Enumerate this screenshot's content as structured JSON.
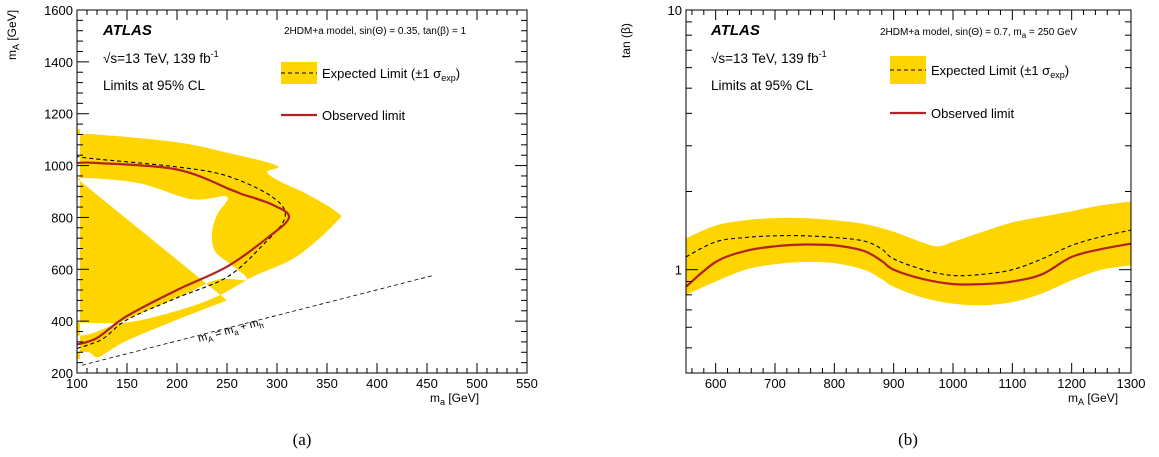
{
  "chart_data": [
    {
      "type": "line",
      "panel_label": "(a)",
      "xlabel": "m_a [GeV]",
      "ylabel": "m_A [GeV]",
      "xlim": [
        100,
        550
      ],
      "ylim": [
        200,
        1600
      ],
      "x_ticks": [
        "100",
        "150",
        "200",
        "250",
        "300",
        "350",
        "400",
        "450",
        "500",
        "550"
      ],
      "y_ticks": [
        "200",
        "400",
        "600",
        "800",
        "1000",
        "1200",
        "1400",
        "1600"
      ],
      "experiment": "ATLAS",
      "energy_lumi": "√s=13 TeV, 139 fb-1",
      "cl_text": "Limits at 95% CL",
      "model": "2HDM+a model, sin(Θ) = 0.35, tan(β) = 1",
      "annotation": "mA = ma + mh",
      "legend": [
        {
          "label": "Expected Limit (±1 σexp)"
        },
        {
          "label": "Observed limit"
        }
      ],
      "colors": {
        "band": "#ffd500",
        "observed": "#b22222",
        "expected": "#000000"
      },
      "series": [
        {
          "name": "Observed limit",
          "x": [
            100,
            120,
            150,
            200,
            250,
            290,
            312,
            295,
            265,
            255,
            200,
            120,
            100
          ],
          "y": [
            310,
            335,
            420,
            520,
            610,
            720,
            800,
            850,
            890,
            905,
            985,
            1010,
            1010
          ]
        },
        {
          "name": "Expected Limit (±1 σexp)",
          "x": [
            100,
            125,
            150,
            200,
            250,
            285,
            308,
            295,
            250,
            200,
            120,
            100
          ],
          "y": [
            295,
            330,
            405,
            490,
            570,
            690,
            800,
            880,
            960,
            995,
            1025,
            1035
          ]
        }
      ],
      "band": {
        "x": [
          100,
          150,
          200,
          240,
          275,
          320,
          360,
          360,
          330,
          305,
          290,
          300,
          250,
          200,
          120,
          100,
          100,
          120,
          165,
          215,
          250,
          240,
          235,
          238,
          255,
          270,
          240,
          200,
          120,
          100,
          100,
          112,
          120,
          130,
          150,
          200,
          250,
          100,
          100
        ],
        "y": [
          395,
          395,
          440,
          495,
          570,
          650,
          785,
          820,
          890,
          935,
          975,
          1000,
          1050,
          1090,
          1120,
          1120,
          950,
          950,
          930,
          870,
          880,
          810,
          740,
          670,
          615,
          560,
          560,
          490,
          360,
          340,
          285,
          280,
          260,
          280,
          325,
          405,
          480,
          1140,
          255
        ]
      },
      "diagonal": {
        "x": [
          105,
          455
        ],
        "y": [
          230,
          575
        ]
      }
    },
    {
      "type": "line",
      "panel_label": "(b)",
      "xlabel": "m_A [GeV]",
      "ylabel": "tan (β)",
      "xlim": [
        550,
        1300
      ],
      "ylim": [
        0.4,
        10
      ],
      "ylog": true,
      "x_ticks": [
        "600",
        "700",
        "800",
        "900",
        "1000",
        "1100",
        "1200",
        "1300"
      ],
      "y_ticks": [
        "1",
        "10"
      ],
      "experiment": "ATLAS",
      "energy_lumi": "√s=13 TeV, 139 fb-1",
      "cl_text": "Limits at 95% CL",
      "model": "2HDM+a model, sin(Θ) = 0.7, ma = 250 GeV",
      "legend": [
        {
          "label": "Expected Limit (±1 σexp)"
        },
        {
          "label": "Observed limit"
        }
      ],
      "colors": {
        "band": "#ffd500",
        "observed": "#b22222",
        "expected": "#000000"
      },
      "series": [
        {
          "name": "Observed limit",
          "x": [
            550,
            600,
            650,
            700,
            750,
            800,
            850,
            880,
            900,
            950,
            1000,
            1050,
            1100,
            1150,
            1200,
            1250,
            1300
          ],
          "y": [
            0.86,
            1.07,
            1.18,
            1.23,
            1.25,
            1.24,
            1.18,
            1.08,
            1.0,
            0.92,
            0.88,
            0.88,
            0.9,
            0.96,
            1.12,
            1.2,
            1.26
          ]
        },
        {
          "name": "Expected Limit (±1 σexp)",
          "x": [
            550,
            600,
            650,
            700,
            750,
            800,
            850,
            880,
            900,
            950,
            1000,
            1050,
            1100,
            1150,
            1200,
            1250,
            1300
          ],
          "y": [
            1.12,
            1.28,
            1.33,
            1.35,
            1.35,
            1.33,
            1.29,
            1.2,
            1.1,
            1.0,
            0.95,
            0.96,
            1.0,
            1.1,
            1.24,
            1.34,
            1.42
          ]
        }
      ],
      "band_upper": {
        "x": [
          550,
          600,
          650,
          700,
          750,
          800,
          850,
          900,
          950,
          975,
          1000,
          1050,
          1100,
          1150,
          1200,
          1250,
          1300
        ],
        "y": [
          1.32,
          1.48,
          1.55,
          1.58,
          1.58,
          1.55,
          1.5,
          1.4,
          1.27,
          1.23,
          1.28,
          1.4,
          1.52,
          1.6,
          1.68,
          1.77,
          1.83
        ]
      },
      "band_lower": {
        "x": [
          550,
          600,
          650,
          700,
          750,
          800,
          850,
          880,
          900,
          950,
          1000,
          1050,
          1100,
          1150,
          1200,
          1250,
          1300
        ],
        "y": [
          0.8,
          0.9,
          1.0,
          1.05,
          1.07,
          1.06,
          1.0,
          0.92,
          0.86,
          0.78,
          0.74,
          0.73,
          0.75,
          0.81,
          0.91,
          1.0,
          1.04
        ]
      }
    }
  ]
}
